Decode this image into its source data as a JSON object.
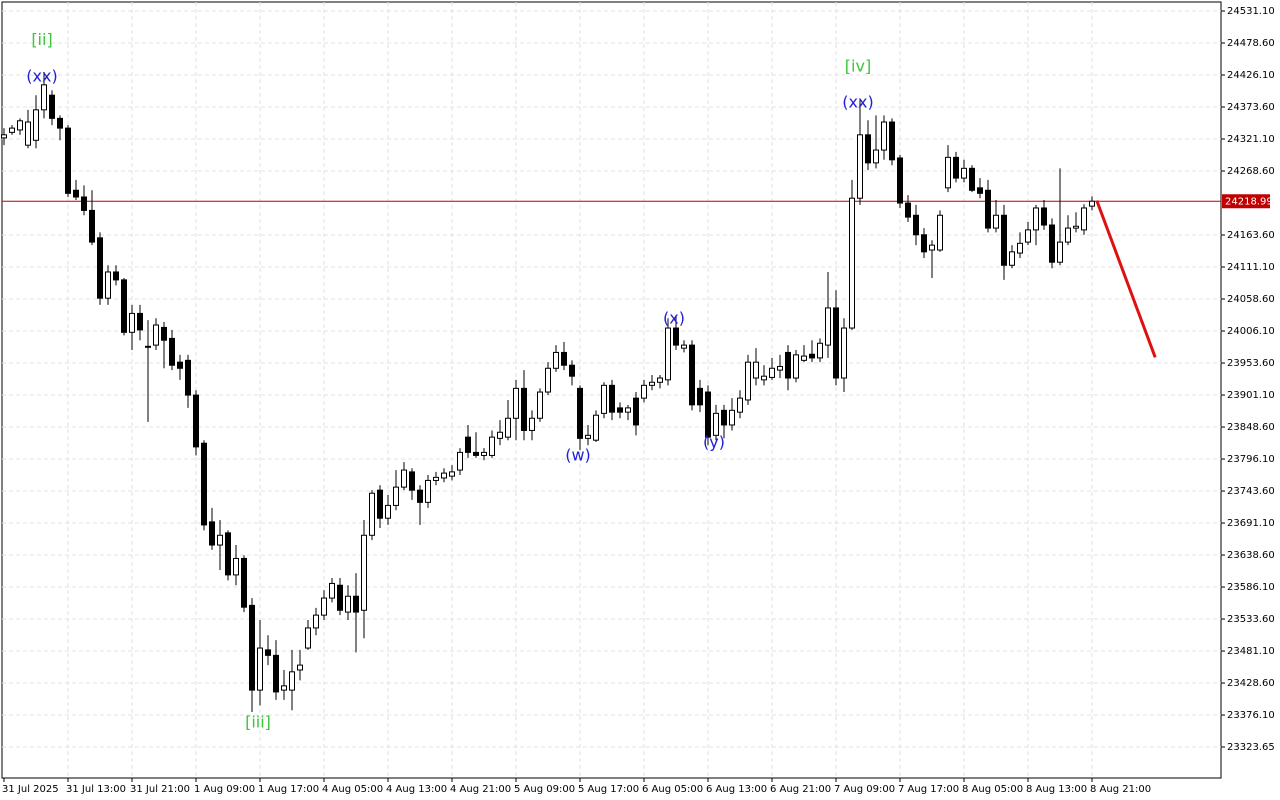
{
  "chart_data": {
    "type": "candlestick",
    "categories": [
      "31 Jul 2025",
      null,
      null,
      null,
      null,
      null,
      null,
      null,
      "31 Jul 13:00",
      null,
      null,
      null,
      null,
      null,
      null,
      null,
      "31 Jul 21:00",
      null,
      null,
      null,
      null,
      null,
      null,
      null,
      "1 Aug 09:00",
      null,
      null,
      null,
      null,
      null,
      null,
      null,
      "1 Aug 17:00",
      null,
      null,
      null,
      null,
      null,
      null,
      null,
      "4 Aug 05:00",
      null,
      null,
      null,
      null,
      null,
      null,
      null,
      "4 Aug 13:00",
      null,
      null,
      null,
      null,
      null,
      null,
      null,
      "4 Aug 21:00",
      null,
      null,
      null,
      null,
      null,
      null,
      null,
      "5 Aug 09:00",
      null,
      null,
      null,
      null,
      null,
      null,
      null,
      "5 Aug 17:00",
      null,
      null,
      null,
      null,
      null,
      null,
      null,
      "6 Aug 05:00",
      null,
      null,
      null,
      null,
      null,
      null,
      null,
      "6 Aug 13:00",
      null,
      null,
      null,
      null,
      null,
      null,
      null,
      "6 Aug 21:00",
      null,
      null,
      null,
      null,
      null,
      null,
      null,
      "7 Aug 09:00",
      null,
      null,
      null,
      null,
      null,
      null,
      null,
      "7 Aug 17:00",
      null,
      null,
      null,
      null,
      null,
      null,
      null,
      "8 Aug 05:00",
      null,
      null,
      null,
      null,
      null,
      null,
      null,
      "8 Aug 13:00",
      null,
      null,
      null,
      null,
      null,
      null,
      null,
      "8 Aug 21:00"
    ],
    "ohlc": [
      [
        24323,
        24339,
        24311,
        24328
      ],
      [
        24332,
        24344,
        24328,
        24339
      ],
      [
        24336,
        24355,
        24328,
        24351
      ],
      [
        24311,
        24369,
        24306,
        24349
      ],
      [
        24319,
        24393,
        24306,
        24369
      ],
      [
        24369,
        24431,
        24355,
        24410
      ],
      [
        24393,
        24401,
        24344,
        24355
      ],
      [
        24355,
        24360,
        24319,
        24339
      ],
      [
        24339,
        24344,
        24226,
        24232
      ],
      [
        24237,
        24254,
        24221,
        24226
      ],
      [
        24226,
        24245,
        24196,
        24204
      ],
      [
        24204,
        24237,
        24147,
        24152
      ],
      [
        24159,
        24168,
        24049,
        24060
      ],
      [
        24060,
        24114,
        24049,
        24103
      ],
      [
        24103,
        24114,
        24081,
        24090
      ],
      [
        24090,
        24093,
        23999,
        24004
      ],
      [
        24004,
        24049,
        23975,
        24035
      ],
      [
        24035,
        24049,
        23991,
        24008
      ],
      [
        23981,
        24024,
        23857,
        23980
      ],
      [
        23983,
        24027,
        23975,
        24016
      ],
      [
        24012,
        24021,
        23945,
        23991
      ],
      [
        23994,
        24008,
        23942,
        23950
      ],
      [
        23955,
        23967,
        23926,
        23945
      ],
      [
        23958,
        23967,
        23880,
        23901
      ],
      [
        23901,
        23909,
        23802,
        23816
      ],
      [
        23822,
        23827,
        23679,
        23688
      ],
      [
        23693,
        23716,
        23647,
        23655
      ],
      [
        23655,
        23696,
        23614,
        23671
      ],
      [
        23675,
        23679,
        23597,
        23606
      ],
      [
        23606,
        23655,
        23589,
        23633
      ],
      [
        23633,
        23638,
        23545,
        23553
      ],
      [
        23556,
        23568,
        23381,
        23417
      ],
      [
        23417,
        23532,
        23392,
        23486
      ],
      [
        23483,
        23507,
        23458,
        23474
      ],
      [
        23474,
        23499,
        23401,
        23414
      ],
      [
        23417,
        23450,
        23401,
        23424
      ],
      [
        23417,
        23483,
        23384,
        23447
      ],
      [
        23450,
        23483,
        23433,
        23458
      ],
      [
        23486,
        23532,
        23483,
        23519
      ],
      [
        23519,
        23552,
        23507,
        23540
      ],
      [
        23540,
        23581,
        23532,
        23568
      ],
      [
        23568,
        23601,
        23561,
        23592
      ],
      [
        23589,
        23601,
        23540,
        23548
      ],
      [
        23545,
        23589,
        23532,
        23571
      ],
      [
        23571,
        23609,
        23479,
        23545
      ],
      [
        23548,
        23696,
        23502,
        23671
      ],
      [
        23671,
        23745,
        23663,
        23740
      ],
      [
        23745,
        23753,
        23683,
        23699
      ],
      [
        23699,
        23737,
        23688,
        23720
      ],
      [
        23720,
        23778,
        23712,
        23750
      ],
      [
        23750,
        23791,
        23745,
        23778
      ],
      [
        23775,
        23781,
        23729,
        23745
      ],
      [
        23745,
        23753,
        23688,
        23725
      ],
      [
        23725,
        23770,
        23716,
        23761
      ],
      [
        23761,
        23775,
        23753,
        23766
      ],
      [
        23765,
        23781,
        23758,
        23773
      ],
      [
        23768,
        23786,
        23761,
        23775
      ],
      [
        23778,
        23814,
        23770,
        23807
      ],
      [
        23832,
        23852,
        23798,
        23807
      ],
      [
        23807,
        23840,
        23798,
        23802
      ],
      [
        23802,
        23814,
        23794,
        23807
      ],
      [
        23802,
        23843,
        23798,
        23832
      ],
      [
        23830,
        23860,
        23819,
        23840
      ],
      [
        23832,
        23893,
        23827,
        23863
      ],
      [
        23863,
        23926,
        23827,
        23912
      ],
      [
        23912,
        23942,
        23827,
        23843
      ],
      [
        23843,
        23876,
        23827,
        23863
      ],
      [
        23863,
        23912,
        23857,
        23906
      ],
      [
        23906,
        23955,
        23901,
        23945
      ],
      [
        23945,
        23983,
        23939,
        23971
      ],
      [
        23971,
        23988,
        23942,
        23950
      ],
      [
        23950,
        23958,
        23917,
        23932
      ],
      [
        23912,
        23917,
        23811,
        23830
      ],
      [
        23830,
        23852,
        23819,
        23835
      ],
      [
        23827,
        23876,
        23824,
        23868
      ],
      [
        23871,
        23922,
        23863,
        23917
      ],
      [
        23917,
        23926,
        23860,
        23873
      ],
      [
        23880,
        23889,
        23863,
        23873
      ],
      [
        23873,
        23885,
        23860,
        23880
      ],
      [
        23896,
        23906,
        23835,
        23852
      ],
      [
        23896,
        23926,
        23889,
        23917
      ],
      [
        23917,
        23934,
        23909,
        23922
      ],
      [
        23922,
        23934,
        23912,
        23929
      ],
      [
        23926,
        24027,
        23917,
        24011
      ],
      [
        24011,
        24032,
        23975,
        23983
      ],
      [
        23978,
        23991,
        23971,
        23983
      ],
      [
        23983,
        23991,
        23876,
        23885
      ],
      [
        23912,
        23926,
        23873,
        23885
      ],
      [
        23906,
        23917,
        23819,
        23832
      ],
      [
        23835,
        23885,
        23827,
        23871
      ],
      [
        23876,
        23885,
        23830,
        23852
      ],
      [
        23852,
        23896,
        23843,
        23876
      ],
      [
        23873,
        23909,
        23863,
        23896
      ],
      [
        23893,
        23967,
        23885,
        23955
      ],
      [
        23929,
        23978,
        23917,
        23955
      ],
      [
        23926,
        23950,
        23917,
        23932
      ],
      [
        23930,
        23962,
        23926,
        23945
      ],
      [
        23942,
        23967,
        23929,
        23948
      ],
      [
        23971,
        23983,
        23909,
        23929
      ],
      [
        23929,
        23975,
        23922,
        23967
      ],
      [
        23958,
        23983,
        23955,
        23965
      ],
      [
        23968,
        23991,
        23955,
        23962
      ],
      [
        23962,
        23994,
        23955,
        23986
      ],
      [
        23983,
        24103,
        23962,
        24044
      ],
      [
        24044,
        24073,
        23917,
        23929
      ],
      [
        23929,
        24027,
        23906,
        24011
      ],
      [
        24011,
        24254,
        24008,
        24224
      ],
      [
        24224,
        24385,
        24213,
        24328
      ],
      [
        24328,
        24352,
        24270,
        24282
      ],
      [
        24282,
        24360,
        24273,
        24303
      ],
      [
        24303,
        24360,
        24287,
        24349
      ],
      [
        24349,
        24355,
        24278,
        24287
      ],
      [
        24290,
        24295,
        24208,
        24216
      ],
      [
        24216,
        24229,
        24185,
        24193
      ],
      [
        24196,
        24213,
        24147,
        24164
      ],
      [
        24164,
        24175,
        24126,
        24136
      ],
      [
        24139,
        24155,
        24093,
        24147
      ],
      [
        24139,
        24204,
        24136,
        24196
      ],
      [
        24241,
        24311,
        24234,
        24291
      ],
      [
        24291,
        24300,
        24250,
        24257
      ],
      [
        24257,
        24287,
        24250,
        24273
      ],
      [
        24273,
        24278,
        24234,
        24237
      ],
      [
        24241,
        24257,
        24224,
        24232
      ],
      [
        24237,
        24254,
        24168,
        24175
      ],
      [
        24175,
        24221,
        24168,
        24196
      ],
      [
        24196,
        24213,
        24090,
        24114
      ],
      [
        24114,
        24147,
        24109,
        24136
      ],
      [
        24134,
        24168,
        24126,
        24150
      ],
      [
        24152,
        24185,
        24147,
        24172
      ],
      [
        24172,
        24213,
        24147,
        24208
      ],
      [
        24208,
        24221,
        24172,
        24180
      ],
      [
        24180,
        24191,
        24109,
        24119
      ],
      [
        24119,
        24273,
        24114,
        24152
      ],
      [
        24152,
        24196,
        24147,
        24175
      ],
      [
        24175,
        24201,
        24168,
        24178
      ],
      [
        24172,
        24214,
        24164,
        24208
      ],
      [
        24211,
        24227,
        24204,
        24219
      ]
    ],
    "up_color": "#ffffff",
    "down_color": "#000000",
    "ylim": [
      23272.8,
      24545.9
    ],
    "yticks": [
      {
        "value": 24531.1,
        "label": "24531.10"
      },
      {
        "value": 24478.6,
        "label": "24478.60"
      },
      {
        "value": 24426.1,
        "label": "24426.10"
      },
      {
        "value": 24373.6,
        "label": "24373.60"
      },
      {
        "value": 24321.1,
        "label": "24321.10"
      },
      {
        "value": 24268.6,
        "label": "24268.60"
      },
      {
        "value": 24163.6,
        "label": "24163.60"
      },
      {
        "value": 24111.1,
        "label": "24111.10"
      },
      {
        "value": 24058.6,
        "label": "24058.60"
      },
      {
        "value": 24006.1,
        "label": "24006.10"
      },
      {
        "value": 23953.6,
        "label": "23953.60"
      },
      {
        "value": 23901.1,
        "label": "23901.10"
      },
      {
        "value": 23848.6,
        "label": "23848.60"
      },
      {
        "value": 23796.1,
        "label": "23796.10"
      },
      {
        "value": 23743.6,
        "label": "23743.60"
      },
      {
        "value": 23691.1,
        "label": "23691.10"
      },
      {
        "value": 23638.6,
        "label": "23638.60"
      },
      {
        "value": 23586.1,
        "label": "23586.10"
      },
      {
        "value": 23533.6,
        "label": "23533.60"
      },
      {
        "value": 23481.1,
        "label": "23481.10"
      },
      {
        "value": 23428.6,
        "label": "23428.60"
      },
      {
        "value": 23376.1,
        "label": "23376.10"
      },
      23323.65
    ],
    "grid": true,
    "current_price": 24218.99,
    "current_price_color": "#c00000",
    "forecast": {
      "color": "#e01010",
      "x": [
        136.6,
        143.9
      ],
      "values": [
        24220,
        23963
      ]
    },
    "annotations": [
      {
        "text": "[ii]",
        "color": "#3cc43c",
        "x": 4.75,
        "y": 24483
      },
      {
        "text": "(xx)",
        "color": "#2020d8",
        "x": 4.75,
        "y": 24423
      },
      {
        "text": "[iii]",
        "color": "#3cc43c",
        "x": 31.75,
        "y": 23363
      },
      {
        "text": "(w)",
        "color": "#2020d8",
        "x": 71.75,
        "y": 23801
      },
      {
        "text": "(x)",
        "color": "#2020d8",
        "x": 83.75,
        "y": 24026
      },
      {
        "text": "(y)",
        "color": "#2020d8",
        "x": 88.75,
        "y": 23822
      },
      {
        "text": "[iv]",
        "color": "#3cc43c",
        "x": 106.75,
        "y": 24439
      },
      {
        "text": "(xx)",
        "color": "#2020d8",
        "x": 106.75,
        "y": 24380
      }
    ]
  }
}
